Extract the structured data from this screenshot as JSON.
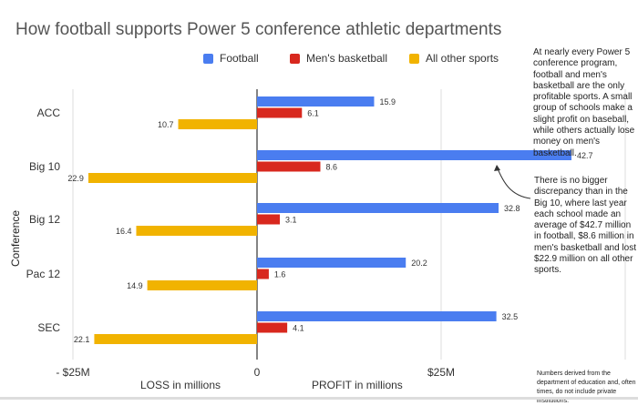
{
  "chart_data": {
    "type": "bar",
    "orientation": "horizontal",
    "title": "How football supports Power 5 conference athletic departments",
    "ylabel": "Conference",
    "xlabel_loss": "LOSS in millions",
    "xlabel_profit": "PROFIT in millions",
    "categories": [
      "ACC",
      "Big 10",
      "Big 12",
      "Pac 12",
      "SEC"
    ],
    "series": [
      {
        "name": "Football",
        "color": "#4a7df0",
        "values": [
          15.9,
          42.7,
          32.8,
          20.2,
          32.5
        ]
      },
      {
        "name": "Men's basketball",
        "color": "#d8281e",
        "values": [
          6.1,
          8.6,
          3.1,
          1.6,
          4.1
        ]
      },
      {
        "name": "All other sports",
        "color": "#f1b300",
        "values": [
          -10.7,
          -22.9,
          -16.4,
          -14.9,
          -22.1
        ]
      }
    ],
    "data_labels": [
      [
        "15.9",
        "42.7",
        "32.8",
        "20.2",
        "32.5"
      ],
      [
        "6.1",
        "8.6",
        "3.1",
        "1.6",
        "4.1"
      ],
      [
        "10.7",
        "22.9",
        "16.4",
        "14.9",
        "22.1"
      ]
    ],
    "xlim": [
      -25,
      50
    ],
    "x_ticks": [
      {
        "value": -25,
        "label": "- $25M"
      },
      {
        "value": 0,
        "label": "0"
      },
      {
        "value": 25,
        "label": "$25M"
      },
      {
        "value": 50,
        "label": ""
      }
    ],
    "grid": true,
    "legend_position": "top",
    "annotations": [
      "At nearly every Power 5 conference program, football and men's basketball are the only profitable sports. A small group of schools make a slight profit on baseball, while others actually lose money on men's basketball.",
      "There is no bigger discrepancy than in the Big 10, where last year each school made an average of $42.7 million in football, $8.6 million in men's basketball and lost $22.9 million on all other sports."
    ],
    "footnote": "Numbers derived from the department of education and, often times, do not include private institutions."
  }
}
